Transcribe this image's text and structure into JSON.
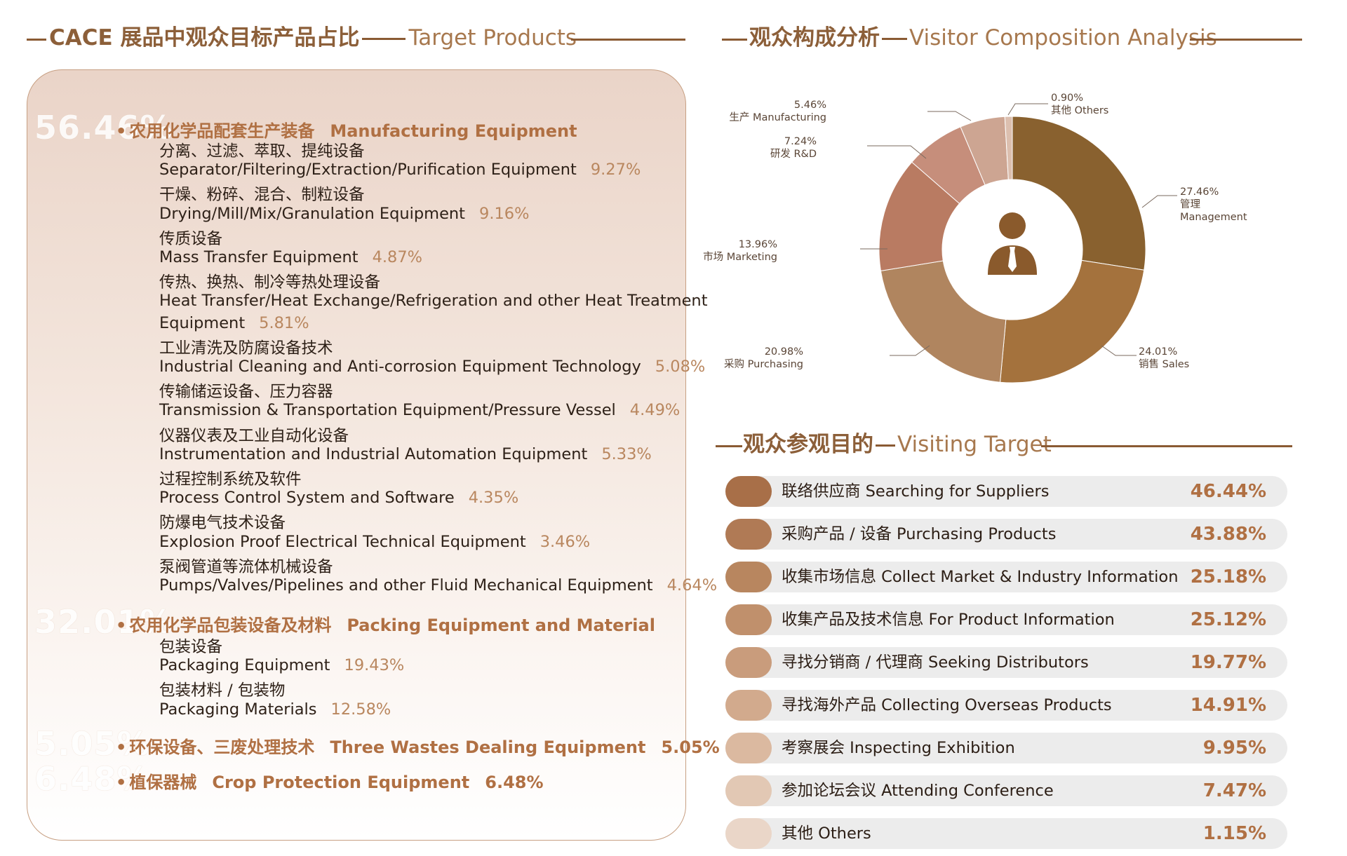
{
  "left_section": {
    "title_zh": "CACE 展品中观众目标产品占比",
    "title_en": "Target Products",
    "categories": [
      {
        "big_pct": "56.46%",
        "name_zh": "农用化学品配套生产装备",
        "name_en": "Manufacturing Equipment",
        "pct": "",
        "items": [
          {
            "zh": "分离、过滤、萃取、提纯设备",
            "en": "Separator/Filtering/Extraction/Purification Equipment",
            "pct": "9.27%"
          },
          {
            "zh": "干燥、粉碎、混合、制粒设备",
            "en": "Drying/Mill/Mix/Granulation Equipment",
            "pct": "9.16%"
          },
          {
            "zh": "传质设备",
            "en": "Mass Transfer Equipment",
            "pct": "4.87%"
          },
          {
            "zh": "传热、换热、制冷等热处理设备",
            "en": "Heat Transfer/Heat Exchange/Refrigeration and other Heat Treatment",
            "en2": "Equipment",
            "pct": "5.81%"
          },
          {
            "zh": "工业清洗及防腐设备技术",
            "en": "Industrial Cleaning and Anti-corrosion Equipment Technology",
            "pct": "5.08%"
          },
          {
            "zh": "传输储运设备、压力容器",
            "en": "Transmission & Transportation Equipment/Pressure Vessel",
            "pct": "4.49%"
          },
          {
            "zh": "仪器仪表及工业自动化设备",
            "en": "Instrumentation and Industrial Automation Equipment",
            "pct": "5.33%"
          },
          {
            "zh": "过程控制系统及软件",
            "en": "Process Control System and Software",
            "pct": "4.35%"
          },
          {
            "zh": "防爆电气技术设备",
            "en": "Explosion Proof Electrical Technical Equipment",
            "pct": "3.46%"
          },
          {
            "zh": "泵阀管道等流体机械设备",
            "en": "Pumps/Valves/Pipelines and other Fluid Mechanical Equipment",
            "pct": "4.64%"
          }
        ]
      },
      {
        "big_pct": "32.01%",
        "name_zh": "农用化学品包装设备及材料",
        "name_en": "Packing Equipment and Material",
        "pct": "",
        "items": [
          {
            "zh": "包装设备",
            "en": "Packaging Equipment",
            "pct": "19.43%"
          },
          {
            "zh": "包装材料 / 包装物",
            "en": "Packaging Materials",
            "pct": "12.58%"
          }
        ]
      },
      {
        "big_pct": "5.05%",
        "name_zh": "环保设备、三废处理技术",
        "name_en": "Three Wastes Dealing Equipment",
        "pct": "5.05%",
        "items": []
      },
      {
        "big_pct": "6.48%",
        "name_zh": "植保器械",
        "name_en": "Crop Protection Equipment",
        "pct": "6.48%",
        "items": []
      }
    ]
  },
  "composition": {
    "title_zh": "观众构成分析",
    "title_en": "Visitor Composition Analysis",
    "center_icon": "person-with-tie-icon"
  },
  "chart_data": [
    {
      "type": "pie",
      "title": "观众构成分析 Visitor Composition Analysis",
      "series": [
        {
          "label_zh": "管理",
          "label_en": "Management",
          "value": 27.46,
          "color": "#89612f"
        },
        {
          "label_zh": "销售",
          "label_en": "Sales",
          "value": 24.01,
          "color": "#a4723d"
        },
        {
          "label_zh": "采购",
          "label_en": "Purchasing",
          "value": 20.98,
          "color": "#b0855f"
        },
        {
          "label_zh": "市场",
          "label_en": "Marketing",
          "value": 13.96,
          "color": "#b97b62"
        },
        {
          "label_zh": "研发",
          "label_en": "R&D",
          "value": 7.24,
          "color": "#c68e7b"
        },
        {
          "label_zh": "生产",
          "label_en": "Manufacturing",
          "value": 5.46,
          "color": "#cda592"
        },
        {
          "label_zh": "其他",
          "label_en": "Others",
          "value": 0.9,
          "color": "#dcbfaf"
        }
      ],
      "labels": [
        {
          "pct": "27.46%",
          "lines": [
            "管理",
            "Management"
          ]
        },
        {
          "pct": "24.01%",
          "lines": [
            "销售 Sales"
          ]
        },
        {
          "pct": "20.98%",
          "lines": [
            "采购 Purchasing"
          ]
        },
        {
          "pct": "13.96%",
          "lines": [
            "市场 Marketing"
          ]
        },
        {
          "pct": "7.24%",
          "lines": [
            "研发 R&D"
          ]
        },
        {
          "pct": "5.46%",
          "lines": [
            "生产 Manufacturing"
          ]
        },
        {
          "pct": "0.90%",
          "lines": [
            "其他 Others"
          ]
        }
      ]
    },
    {
      "type": "bar",
      "title": "观众参观目的 Visiting Target",
      "categories": [
        "联络供应商  Searching for Suppliers",
        "采购产品 / 设备 Purchasing Products",
        "收集市场信息 Collect Market & Industry Information",
        "收集产品及技术信息 For Product Information",
        "寻找分销商 / 代理商 Seeking Distributors",
        "寻找海外产品 Collecting Overseas Products",
        "考察展会 Inspecting Exhibition",
        "参加论坛会议 Attending Conference",
        "其他   Others"
      ],
      "values": [
        46.44,
        43.88,
        25.18,
        25.12,
        19.77,
        14.91,
        9.95,
        7.47,
        1.15
      ],
      "value_labels": [
        "46.44%",
        "43.88%",
        "25.18%",
        "25.12%",
        "19.77%",
        "14.91%",
        "9.95%",
        "7.47%",
        "1.15%"
      ],
      "pill_colors": [
        "#a86f48",
        "#b07a55",
        "#b8865f",
        "#c0906c",
        "#c99c7c",
        "#d2aa8d",
        "#dbb9a0",
        "#e2c8b4",
        "#ead6c8"
      ]
    }
  ],
  "visiting": {
    "title_zh": "观众参观目的",
    "title_en": "Visiting Target"
  }
}
